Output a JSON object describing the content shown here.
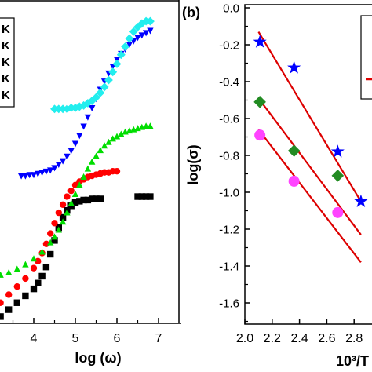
{
  "chart_data": [
    {
      "type": "scatter",
      "panel_label": "",
      "xlabel": "log (ω)",
      "ylabel": "",
      "xlim": [
        3.0,
        7.3
      ],
      "x_ticks": [
        "4",
        "5",
        "6",
        "7"
      ],
      "legend_placement": "top-left",
      "legend_labels": [
        "K",
        "K",
        "K",
        "K",
        "K"
      ],
      "series": [
        {
          "marker": "square",
          "color": "#000000",
          "x": [
            3.0,
            3.2,
            3.4,
            3.6,
            3.8,
            4.0,
            4.1,
            4.2,
            4.3,
            4.4,
            4.5,
            4.6,
            4.7,
            4.8,
            4.9,
            5.0,
            5.1,
            5.2,
            5.3,
            5.4,
            5.5,
            5.6,
            6.5,
            6.6,
            6.7,
            6.8
          ],
          "y": [
            -1.75,
            -1.7,
            -1.64,
            -1.58,
            -1.52,
            -1.46,
            -1.41,
            -1.35,
            -1.27,
            -1.16,
            -1.04,
            -0.93,
            -0.84,
            -0.78,
            -0.74,
            -0.71,
            -0.7,
            -0.69,
            -0.69,
            -0.68,
            -0.68,
            -0.68,
            -0.66,
            -0.66,
            -0.66,
            -0.66
          ]
        },
        {
          "marker": "circle",
          "color": "#ff0000",
          "x": [
            3.0,
            3.2,
            3.4,
            3.6,
            3.8,
            4.0,
            4.1,
            4.2,
            4.3,
            4.4,
            4.5,
            4.6,
            4.7,
            4.8,
            4.9,
            5.0,
            5.1,
            5.2,
            5.3,
            5.4,
            5.5,
            5.6,
            5.7,
            5.8,
            5.9,
            6.0
          ],
          "y": [
            -1.65,
            -1.58,
            -1.51,
            -1.44,
            -1.37,
            -1.28,
            -1.22,
            -1.15,
            -1.07,
            -0.98,
            -0.89,
            -0.8,
            -0.73,
            -0.66,
            -0.61,
            -0.56,
            -0.53,
            -0.51,
            -0.49,
            -0.48,
            -0.47,
            -0.46,
            -0.45,
            -0.45,
            -0.44,
            -0.44
          ]
        },
        {
          "marker": "triangle-up",
          "color": "#00dd00",
          "x": [
            3.0,
            3.2,
            3.4,
            3.6,
            3.8,
            4.0,
            4.2,
            4.4,
            4.5,
            4.6,
            4.7,
            4.8,
            4.9,
            5.0,
            5.1,
            5.2,
            5.3,
            5.4,
            5.5,
            5.6,
            5.7,
            5.8,
            5.9,
            6.0,
            6.1,
            6.2,
            6.3,
            6.4,
            6.5,
            6.6,
            6.7,
            6.8
          ],
          "y": [
            -1.36,
            -1.34,
            -1.32,
            -1.29,
            -1.25,
            -1.2,
            -1.14,
            -1.06,
            -1.01,
            -0.95,
            -0.88,
            -0.8,
            -0.72,
            -0.64,
            -0.56,
            -0.49,
            -0.42,
            -0.36,
            -0.31,
            -0.26,
            -0.22,
            -0.19,
            -0.16,
            -0.14,
            -0.12,
            -0.1,
            -0.09,
            -0.08,
            -0.07,
            -0.06,
            -0.05,
            -0.05
          ]
        },
        {
          "marker": "triangle-down",
          "color": "#0000ff",
          "x": [
            3.7,
            3.8,
            3.9,
            4.0,
            4.1,
            4.2,
            4.3,
            4.4,
            4.5,
            4.6,
            4.7,
            4.8,
            4.9,
            5.0,
            5.1,
            5.2,
            5.3,
            5.4,
            5.5,
            5.6,
            5.7,
            5.8,
            5.9,
            6.0,
            6.1,
            6.2,
            6.3,
            6.4,
            6.5,
            6.6,
            6.7,
            6.8
          ],
          "y": [
            -0.48,
            -0.48,
            -0.47,
            -0.47,
            -0.46,
            -0.45,
            -0.44,
            -0.43,
            -0.41,
            -0.38,
            -0.35,
            -0.31,
            -0.26,
            -0.2,
            -0.13,
            -0.05,
            0.03,
            0.11,
            0.19,
            0.27,
            0.34,
            0.41,
            0.47,
            0.53,
            0.58,
            0.62,
            0.66,
            0.69,
            0.72,
            0.74,
            0.76,
            0.78
          ]
        },
        {
          "marker": "diamond",
          "color": "#22eeee",
          "x": [
            4.5,
            4.6,
            4.7,
            4.8,
            4.9,
            5.0,
            5.1,
            5.2,
            5.3,
            5.4,
            5.5,
            5.6,
            5.7,
            5.8,
            5.9,
            6.0,
            6.1,
            6.2,
            6.3,
            6.4,
            6.5,
            6.6,
            6.7,
            6.8
          ],
          "y": [
            0.1,
            0.1,
            0.1,
            0.1,
            0.11,
            0.11,
            0.12,
            0.13,
            0.15,
            0.17,
            0.2,
            0.24,
            0.29,
            0.35,
            0.42,
            0.49,
            0.57,
            0.64,
            0.71,
            0.77,
            0.81,
            0.84,
            0.86,
            0.86
          ]
        }
      ]
    },
    {
      "type": "scatter",
      "panel_label": "(b)",
      "xlabel": "10³/T",
      "ylabel": "log(σ)",
      "xlim": [
        2.0,
        2.85
      ],
      "ylim": [
        -1.7,
        0.0
      ],
      "x_ticks": [
        "2.0",
        "2.2",
        "2.4",
        "2.6",
        "2.8"
      ],
      "y_ticks": [
        "0.0",
        "-0.2",
        "-0.4",
        "-0.6",
        "-0.8",
        "-1.0",
        "-1.2",
        "-1.4",
        "-1.6"
      ],
      "legend_placement": "top-right",
      "series": [
        {
          "marker": "star",
          "color": "#0000ff",
          "x": [
            2.11,
            2.36,
            2.68,
            2.85
          ],
          "y": [
            -0.185,
            -0.325,
            -0.78,
            -1.05
          ]
        },
        {
          "marker": "diamond",
          "color": "#228b22",
          "x": [
            2.11,
            2.36,
            2.68
          ],
          "y": [
            -0.51,
            -0.775,
            -0.91
          ]
        },
        {
          "marker": "circle",
          "color": "#ff44ff",
          "x": [
            2.11,
            2.36,
            2.68
          ],
          "y": [
            -0.69,
            -0.94,
            -1.11
          ]
        }
      ],
      "fit_lines": [
        {
          "color": "#dd0000",
          "x": [
            2.1,
            2.85
          ],
          "y": [
            -0.13,
            -1.05
          ]
        },
        {
          "color": "#dd0000",
          "x": [
            2.1,
            2.85
          ],
          "y": [
            -0.49,
            -1.23
          ]
        },
        {
          "color": "#dd0000",
          "x": [
            2.1,
            2.85
          ],
          "y": [
            -0.66,
            -1.38
          ]
        }
      ]
    }
  ]
}
